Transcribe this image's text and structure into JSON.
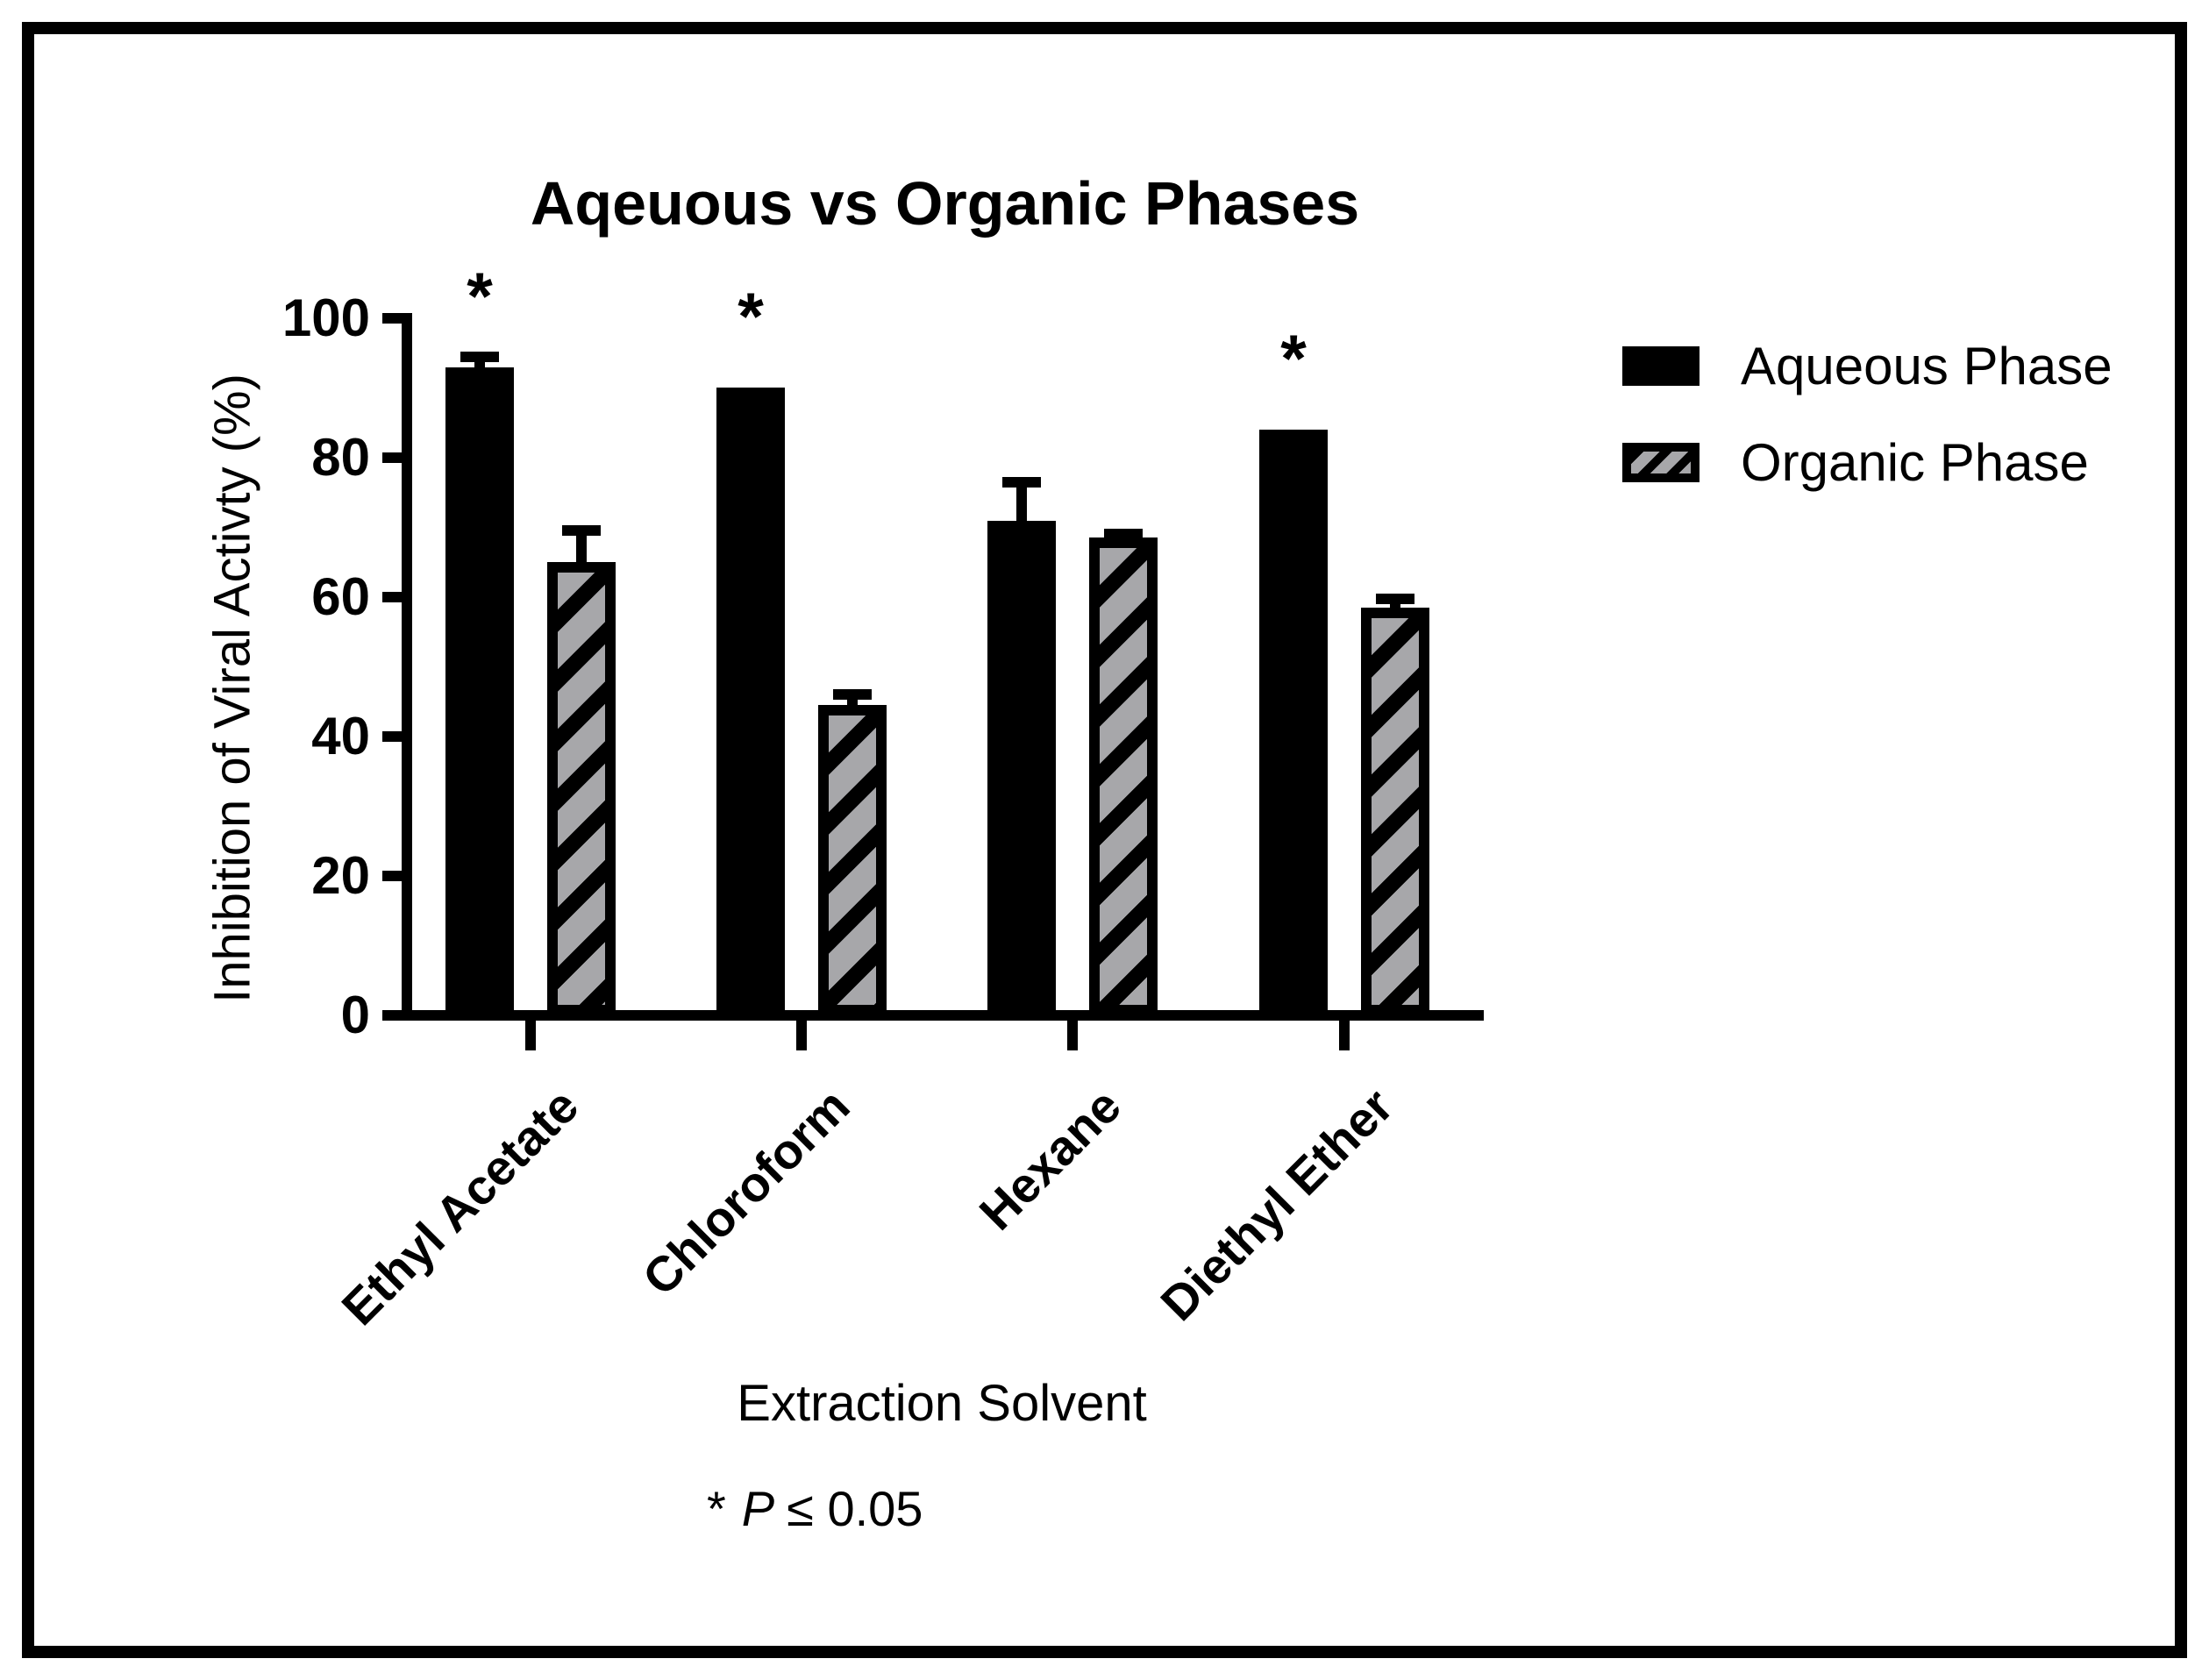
{
  "chart_data": {
    "type": "bar",
    "title": "Aqeuous vs Organic Phases",
    "xlabel": "Extraction Solvent",
    "ylabel": "Inhibition of Viral Activty (%)",
    "ylim": [
      0,
      100
    ],
    "yticks": [
      0,
      20,
      40,
      60,
      80,
      100
    ],
    "categories": [
      "Ethyl Acetate",
      "Chloroform",
      "Hexane",
      "Diethyl Ether"
    ],
    "series": [
      {
        "name": "Aqueous Phase",
        "style": "solid",
        "values": [
          93,
          90,
          71,
          84
        ],
        "upper_errors": [
          1.5,
          0,
          5.5,
          0
        ],
        "significant": [
          true,
          true,
          false,
          true
        ]
      },
      {
        "name": "Organic Phase",
        "style": "hatched",
        "values": [
          65,
          44.5,
          68.5,
          58.5
        ],
        "upper_errors": [
          4.5,
          1.5,
          0.5,
          1.2
        ],
        "significant": [
          false,
          false,
          false,
          false
        ]
      }
    ],
    "significance_marker": "*",
    "footnote": {
      "marker": "*",
      "symbol": "P",
      "comparison": "≤ 0.05"
    },
    "legend_position": "right",
    "grid": false
  },
  "colors": {
    "bar_black": "#000000",
    "hatch_gray": "#a7a7aa",
    "background": "#ffffff",
    "frame": "#000000"
  }
}
